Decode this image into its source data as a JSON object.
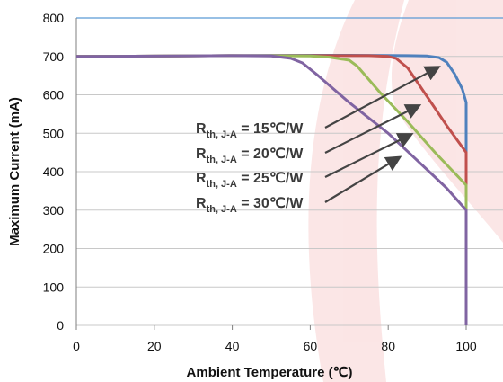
{
  "chart_data": {
    "type": "line",
    "xlabel": "Ambient Temperature (℃)",
    "ylabel": "Maximum Current (mA)",
    "xlim": [
      0,
      100
    ],
    "ylim": [
      0,
      800
    ],
    "x_ticks": [
      "0",
      "20",
      "40",
      "60",
      "80",
      "100"
    ],
    "y_ticks": [
      "0",
      "100",
      "200",
      "300",
      "400",
      "500",
      "600",
      "700",
      "800"
    ],
    "grid": "horizontal",
    "series": [
      {
        "name": "Rth, J-A = 15℃/W",
        "color": "#4f81bd",
        "points": [
          [
            0,
            700
          ],
          [
            40,
            702
          ],
          [
            60,
            703
          ],
          [
            70,
            703
          ],
          [
            85,
            702
          ],
          [
            90,
            701
          ],
          [
            93,
            697
          ],
          [
            95,
            685
          ],
          [
            97,
            655
          ],
          [
            99,
            615
          ],
          [
            100,
            580
          ],
          [
            100,
            0
          ]
        ]
      },
      {
        "name": "Rth, J-A = 20℃/W",
        "color": "#c0504d",
        "points": [
          [
            0,
            700
          ],
          [
            40,
            702
          ],
          [
            60,
            702
          ],
          [
            75,
            702
          ],
          [
            80,
            700
          ],
          [
            82,
            695
          ],
          [
            85,
            670
          ],
          [
            90,
            595
          ],
          [
            95,
            520
          ],
          [
            100,
            450
          ],
          [
            100,
            0
          ]
        ]
      },
      {
        "name": "Rth, J-A = 25℃/W",
        "color": "#9bbb59",
        "points": [
          [
            0,
            700
          ],
          [
            40,
            702
          ],
          [
            60,
            701
          ],
          [
            65,
            698
          ],
          [
            70,
            690
          ],
          [
            72,
            675
          ],
          [
            78,
            605
          ],
          [
            85,
            530
          ],
          [
            92,
            450
          ],
          [
            100,
            365
          ],
          [
            100,
            0
          ]
        ]
      },
      {
        "name": "Rth, J-A = 30℃/W",
        "color": "#8064a2",
        "points": [
          [
            0,
            700
          ],
          [
            40,
            702
          ],
          [
            50,
            701
          ],
          [
            55,
            695
          ],
          [
            58,
            683
          ],
          [
            62,
            650
          ],
          [
            70,
            580
          ],
          [
            80,
            500
          ],
          [
            90,
            405
          ],
          [
            95,
            357
          ],
          [
            100,
            300
          ],
          [
            100,
            0
          ]
        ]
      }
    ],
    "annotations": [
      {
        "base": "R",
        "sub": "th, J-A",
        "rest": " = 15℃/W"
      },
      {
        "base": "R",
        "sub": "th, J-A",
        "rest": " = 20℃/W"
      },
      {
        "base": "R",
        "sub": "th, J-A",
        "rest": " = 25℃/W"
      },
      {
        "base": "R",
        "sub": "th, J-A",
        "rest": " = 30℃/W"
      }
    ]
  }
}
